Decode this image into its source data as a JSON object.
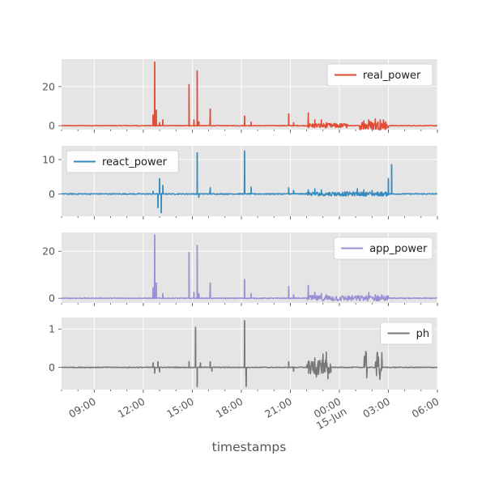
{
  "chart_data": {
    "type": "line",
    "xlabel": "timestamps",
    "x_ticks": [
      {
        "t": "2024-06-14T09:00",
        "label": "09:00",
        "sublabel": ""
      },
      {
        "t": "2024-06-14T12:00",
        "label": "12:00",
        "sublabel": ""
      },
      {
        "t": "2024-06-14T15:00",
        "label": "15:00",
        "sublabel": ""
      },
      {
        "t": "2024-06-14T18:00",
        "label": "18:00",
        "sublabel": ""
      },
      {
        "t": "2024-06-14T21:00",
        "label": "21:00",
        "sublabel": ""
      },
      {
        "t": "2024-06-15T00:00",
        "label": "00:00",
        "sublabel": "15-Jun"
      },
      {
        "t": "2024-06-15T03:00",
        "label": "03:00",
        "sublabel": ""
      },
      {
        "t": "2024-06-15T06:00",
        "label": "06:00",
        "sublabel": ""
      }
    ],
    "xlim": [
      "2024-06-14T07:00",
      "2024-06-15T06:00"
    ],
    "grid": true,
    "panels": [
      {
        "series": {
          "name": "real_power",
          "color": "#E24A33",
          "baseline": 0,
          "noise": 0.3,
          "spikes": [
            {
              "t": "2024-06-14T12:36",
              "v": 5.5
            },
            {
              "t": "2024-06-14T12:42",
              "v": 32.5
            },
            {
              "t": "2024-06-14T12:48",
              "v": 8
            },
            {
              "t": "2024-06-14T13:00",
              "v": 1.5
            },
            {
              "t": "2024-06-14T13:12",
              "v": 3
            },
            {
              "t": "2024-06-14T14:48",
              "v": 21
            },
            {
              "t": "2024-06-14T15:06",
              "v": 3
            },
            {
              "t": "2024-06-14T15:18",
              "v": 28
            },
            {
              "t": "2024-06-14T15:24",
              "v": 2
            },
            {
              "t": "2024-06-14T16:06",
              "v": 8.5
            },
            {
              "t": "2024-06-14T18:12",
              "v": 5
            },
            {
              "t": "2024-06-14T18:36",
              "v": 1.8
            },
            {
              "t": "2024-06-14T20:54",
              "v": 6
            },
            {
              "t": "2024-06-14T21:12",
              "v": 1.5
            },
            {
              "t": "2024-06-14T22:06",
              "v": 6.5
            },
            {
              "t": "2024-06-14T22:30",
              "v": 3
            },
            {
              "t": "2024-06-14T22:54",
              "v": 3
            },
            {
              "t": "2024-06-14T23:12",
              "v": 1.5
            },
            {
              "t": "2024-06-15T01:30",
              "v": 2.5
            },
            {
              "t": "2024-06-15T01:48",
              "v": 3
            },
            {
              "t": "2024-06-15T02:12",
              "v": 3.5
            },
            {
              "t": "2024-06-15T02:30",
              "v": 3
            },
            {
              "t": "2024-06-15T02:42",
              "v": 3
            }
          ],
          "dense_bands": [
            {
              "start": "2024-06-14T22:00",
              "end": "2024-06-15T00:30",
              "amp": 1.2
            },
            {
              "start": "2024-06-15T01:15",
              "end": "2024-06-15T03:00",
              "amp": 2.5
            }
          ]
        },
        "yticks": [
          0,
          20
        ],
        "ylim": [
          -2,
          34
        ],
        "legend": "upper right"
      },
      {
        "series": {
          "name": "react_power",
          "color": "#348ABD",
          "baseline": 0,
          "noise": 0.3,
          "spikes": [
            {
              "t": "2024-06-14T12:36",
              "v": 0.8
            },
            {
              "t": "2024-06-14T12:54",
              "v": -4
            },
            {
              "t": "2024-06-14T13:00",
              "v": 4.5
            },
            {
              "t": "2024-06-14T13:06",
              "v": -5.5
            },
            {
              "t": "2024-06-14T13:12",
              "v": 2.5
            },
            {
              "t": "2024-06-14T15:18",
              "v": 12
            },
            {
              "t": "2024-06-14T15:24",
              "v": -1
            },
            {
              "t": "2024-06-14T16:06",
              "v": 1.8
            },
            {
              "t": "2024-06-14T18:12",
              "v": 12.5
            },
            {
              "t": "2024-06-14T18:36",
              "v": 2
            },
            {
              "t": "2024-06-14T20:54",
              "v": 1.8
            },
            {
              "t": "2024-06-14T21:12",
              "v": 1
            },
            {
              "t": "2024-06-14T22:06",
              "v": 1.2
            },
            {
              "t": "2024-06-14T22:30",
              "v": 1.5
            },
            {
              "t": "2024-06-14T22:54",
              "v": 1.2
            },
            {
              "t": "2024-06-15T01:06",
              "v": 1.5
            },
            {
              "t": "2024-06-15T01:30",
              "v": 1.2
            },
            {
              "t": "2024-06-15T02:00",
              "v": 1
            },
            {
              "t": "2024-06-15T03:00",
              "v": 4.5
            },
            {
              "t": "2024-06-15T03:12",
              "v": 8.5
            }
          ],
          "dense_bands": [
            {
              "start": "2024-06-14T22:00",
              "end": "2024-06-15T03:00",
              "amp": 0.6
            }
          ]
        },
        "yticks": [
          0,
          10
        ],
        "ylim": [
          -6.5,
          14
        ],
        "legend": "upper left"
      },
      {
        "series": {
          "name": "app_power",
          "color": "#988ED5",
          "baseline": 0,
          "noise": 0.3,
          "spikes": [
            {
              "t": "2024-06-14T12:36",
              "v": 4.5
            },
            {
              "t": "2024-06-14T12:42",
              "v": 27
            },
            {
              "t": "2024-06-14T12:48",
              "v": 6.5
            },
            {
              "t": "2024-06-14T13:12",
              "v": 2
            },
            {
              "t": "2024-06-14T14:48",
              "v": 19.5
            },
            {
              "t": "2024-06-14T15:06",
              "v": 2.5
            },
            {
              "t": "2024-06-14T15:18",
              "v": 22.5
            },
            {
              "t": "2024-06-14T15:24",
              "v": 2
            },
            {
              "t": "2024-06-14T16:06",
              "v": 6.5
            },
            {
              "t": "2024-06-14T18:12",
              "v": 8
            },
            {
              "t": "2024-06-14T18:36",
              "v": 2
            },
            {
              "t": "2024-06-14T20:54",
              "v": 5
            },
            {
              "t": "2024-06-14T21:12",
              "v": 1.5
            },
            {
              "t": "2024-06-14T22:06",
              "v": 5.5
            },
            {
              "t": "2024-06-14T22:30",
              "v": 2.5
            },
            {
              "t": "2024-06-14T22:54",
              "v": 2
            },
            {
              "t": "2024-06-14T23:12",
              "v": 1.5
            },
            {
              "t": "2024-06-15T01:48",
              "v": 2.5
            },
            {
              "t": "2024-06-15T02:12",
              "v": 1.5
            },
            {
              "t": "2024-06-15T02:36",
              "v": 1.5
            }
          ],
          "dense_bands": [
            {
              "start": "2024-06-14T22:00",
              "end": "2024-06-15T03:00",
              "amp": 1.2
            }
          ]
        },
        "yticks": [
          0,
          20
        ],
        "ylim": [
          -2,
          28
        ],
        "legend": "upper right"
      },
      {
        "series": {
          "name": "ph",
          "color": "#777777",
          "baseline": 0,
          "noise": 0.02,
          "spikes": [
            {
              "t": "2024-06-14T12:36",
              "v": 0.12
            },
            {
              "t": "2024-06-14T12:42",
              "v": -0.15
            },
            {
              "t": "2024-06-14T12:54",
              "v": 0.15
            },
            {
              "t": "2024-06-14T13:00",
              "v": -0.12
            },
            {
              "t": "2024-06-14T14:48",
              "v": 0.15
            },
            {
              "t": "2024-06-14T15:12",
              "v": 1.05
            },
            {
              "t": "2024-06-14T15:18",
              "v": -0.5
            },
            {
              "t": "2024-06-14T15:30",
              "v": 0.12
            },
            {
              "t": "2024-06-14T16:06",
              "v": 0.15
            },
            {
              "t": "2024-06-14T16:12",
              "v": -0.1
            },
            {
              "t": "2024-06-14T18:12",
              "v": 1.22
            },
            {
              "t": "2024-06-14T18:18",
              "v": -0.5
            },
            {
              "t": "2024-06-14T20:54",
              "v": 0.15
            },
            {
              "t": "2024-06-14T21:12",
              "v": -0.1
            },
            {
              "t": "2024-06-14T22:06",
              "v": 0.15
            },
            {
              "t": "2024-06-14T22:30",
              "v": 0.25
            },
            {
              "t": "2024-06-14T22:36",
              "v": -0.25
            },
            {
              "t": "2024-06-14T23:00",
              "v": 0.35
            },
            {
              "t": "2024-06-14T23:12",
              "v": 0.4
            },
            {
              "t": "2024-06-14T23:18",
              "v": -0.3
            }
          ],
          "dense_bands": [
            {
              "start": "2024-06-14T22:00",
              "end": "2024-06-14T23:30",
              "amp": 0.2
            },
            {
              "start": "2024-06-15T01:30",
              "end": "2024-06-15T01:42",
              "amp": 0.42
            },
            {
              "start": "2024-06-15T02:12",
              "end": "2024-06-15T02:36",
              "amp": 0.42
            }
          ]
        },
        "yticks": [
          0,
          1
        ],
        "ylim": [
          -0.58,
          1.3
        ],
        "legend": "upper right"
      }
    ]
  }
}
